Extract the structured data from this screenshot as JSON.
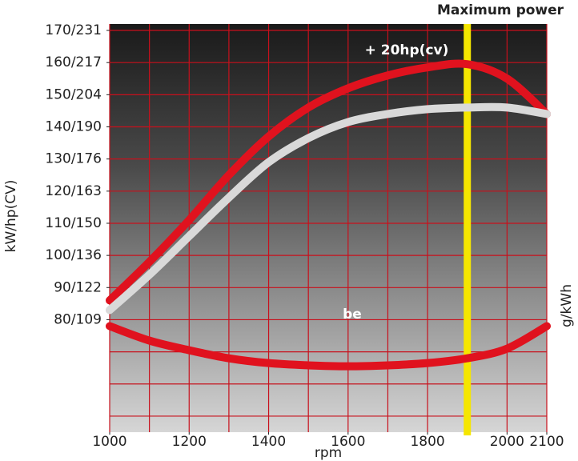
{
  "chart_data": {
    "type": "line",
    "title": "Maximum power",
    "annotations": [
      "+ 20hp(cv)",
      "be"
    ],
    "x_label": "rpm",
    "y_label": "kW/hp(CV)",
    "y2_label": "g/kWh",
    "x": [
      1000,
      1100,
      1200,
      1300,
      1400,
      1500,
      1600,
      1700,
      1800,
      1900,
      2000,
      2100
    ],
    "series": [
      {
        "color": "#e0121e",
        "values": [
          86,
          98,
          111,
          125,
          137,
          146,
          152,
          156,
          158.5,
          159.5,
          155,
          144
        ]
      },
      {
        "color": "#d9d9d9",
        "values": [
          83,
          94,
          106,
          118,
          129,
          136.5,
          141.5,
          144,
          145.5,
          146,
          146,
          144
        ]
      },
      {
        "color": "#e0121e",
        "values": [
          78,
          73.5,
          70.5,
          68,
          66.5,
          65.8,
          65.5,
          65.8,
          66.5,
          68,
          71,
          78
        ]
      }
    ],
    "max_power_rpm": 1900,
    "marker_color": "#f5e600",
    "xlim": [
      1000,
      2100
    ],
    "xticks": [
      1000,
      1200,
      1400,
      1600,
      1800,
      2000,
      2100
    ],
    "ylim": [
      45,
      172
    ],
    "yticks": [
      {
        "value": 80,
        "label": "80/109"
      },
      {
        "value": 90,
        "label": "90/122"
      },
      {
        "value": 100,
        "label": "100/136"
      },
      {
        "value": 110,
        "label": "110/150"
      },
      {
        "value": 120,
        "label": "120/163"
      },
      {
        "value": 130,
        "label": "130/176"
      },
      {
        "value": 140,
        "label": "140/190"
      },
      {
        "value": 150,
        "label": "150/204"
      },
      {
        "value": 160,
        "label": "160/217"
      },
      {
        "value": 170,
        "label": "170/231"
      }
    ],
    "grid": true,
    "grid_color": "#c8101c",
    "xgrid_step": 100,
    "ygrid_step": 10
  }
}
